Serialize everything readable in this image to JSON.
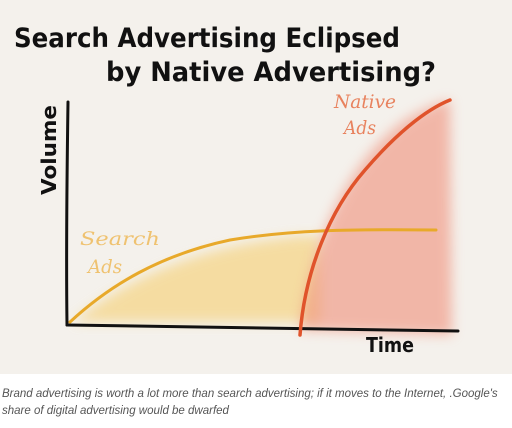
{
  "title_line1": "Search Advertising Eclipsed",
  "title_line2": "by Native Advertising?",
  "y_axis_label": "Volume",
  "x_axis_label": "Time",
  "series": {
    "native": {
      "label_line1": "Native",
      "label_line2": "Ads",
      "color": "#e0532b",
      "fill": "#f0907a"
    },
    "search": {
      "label_line1": "Search",
      "label_line2": "Ads",
      "color": "#e8a92a",
      "fill": "#f6d27a"
    }
  },
  "background": "#f4f1ec",
  "caption": "Brand advertising is worth a lot more than search advertising; if it moves to the Internet, .Google's share of digital advertising would be dwarfed"
}
